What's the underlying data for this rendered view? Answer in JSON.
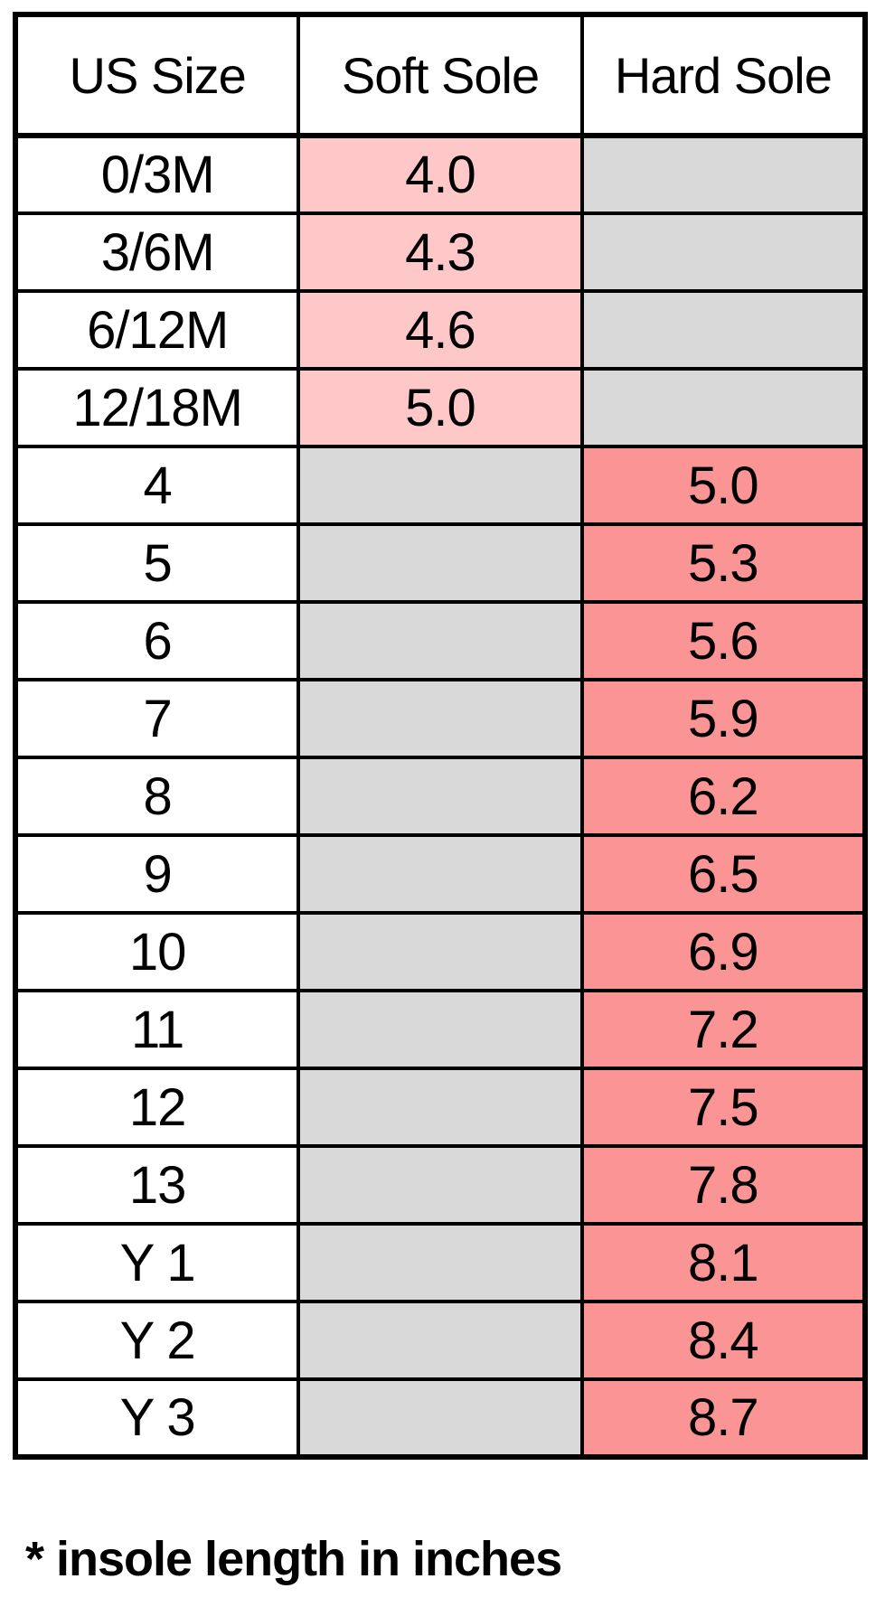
{
  "chart_data": {
    "type": "table",
    "columns": [
      "US Size",
      "Soft Sole",
      "Hard Sole"
    ],
    "rows": [
      {
        "size": "0/3M",
        "soft": "4.0",
        "hard": ""
      },
      {
        "size": "3/6M",
        "soft": "4.3",
        "hard": ""
      },
      {
        "size": "6/12M",
        "soft": "4.6",
        "hard": ""
      },
      {
        "size": "12/18M",
        "soft": "5.0",
        "hard": ""
      },
      {
        "size": "4",
        "soft": "",
        "hard": "5.0"
      },
      {
        "size": "5",
        "soft": "",
        "hard": "5.3"
      },
      {
        "size": "6",
        "soft": "",
        "hard": "5.6"
      },
      {
        "size": "7",
        "soft": "",
        "hard": "5.9"
      },
      {
        "size": "8",
        "soft": "",
        "hard": "6.2"
      },
      {
        "size": "9",
        "soft": "",
        "hard": "6.5"
      },
      {
        "size": "10",
        "soft": "",
        "hard": "6.9"
      },
      {
        "size": "11",
        "soft": "",
        "hard": "7.2"
      },
      {
        "size": "12",
        "soft": "",
        "hard": "7.5"
      },
      {
        "size": "13",
        "soft": "",
        "hard": "7.8"
      },
      {
        "size": "Y 1",
        "soft": "",
        "hard": "8.1"
      },
      {
        "size": "Y 2",
        "soft": "",
        "hard": "8.4"
      },
      {
        "size": "Y 3",
        "soft": "",
        "hard": "8.7"
      }
    ],
    "footnote": "* insole length in inches"
  },
  "colors": {
    "soft_sole_fill": "#FFC8C8",
    "hard_sole_fill": "#FB9494",
    "empty_fill": "#D9D9D9",
    "border": "#000000",
    "background": "#FFFFFF",
    "text": "#000000"
  }
}
